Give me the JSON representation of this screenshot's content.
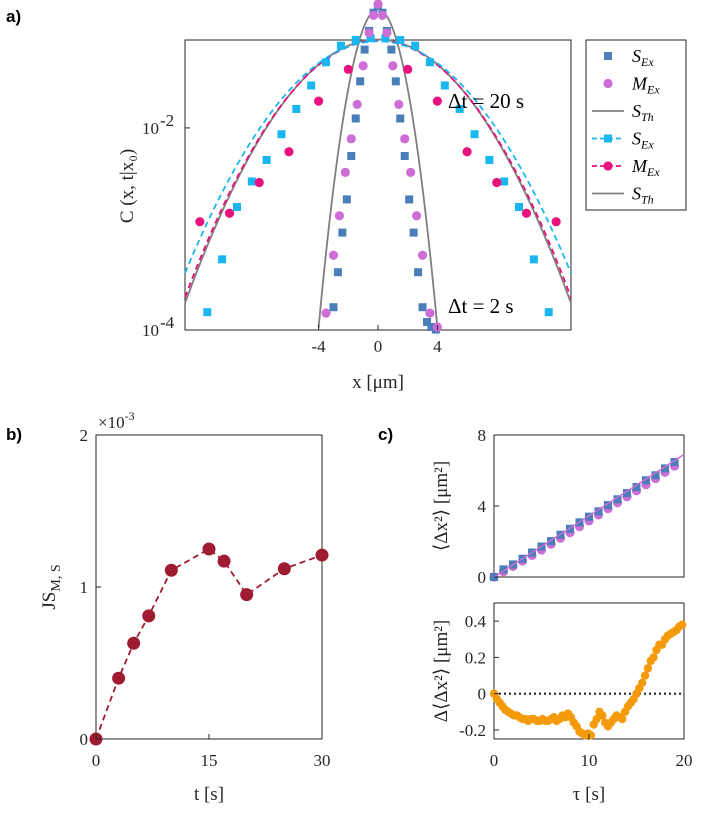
{
  "colors": {
    "S_ex_20": "#1ab6ef",
    "M_ex_20": "#e8117d",
    "S_ex_2": "#4a7ebb",
    "M_ex_2": "#cd6ed6",
    "theory": "#7f7f7f",
    "js": "#9f1b32",
    "msd_S": "#4a7ebb",
    "msd_M": "#cd6ed6",
    "diff": "#f59b0b"
  },
  "chart_data": [
    {
      "panel": "a)",
      "type": "scatter",
      "xlabel": "x [μm]",
      "ylabel": "C (x, t|x₀)",
      "xlim": [
        -13,
        13
      ],
      "ylim_log10": [
        -4,
        -1.13
      ],
      "xticks": [
        -4,
        0,
        4
      ],
      "xtick_labels": [
        "-4",
        "0",
        "4"
      ],
      "yticks_log10": [
        -4,
        -2
      ],
      "ytick_labels": [
        "10",
        "10"
      ],
      "ytick_exponents": [
        "-4",
        "-2"
      ],
      "annotations": [
        "Δt = 20 s",
        "Δt = 2 s"
      ],
      "legend": [
        {
          "label": "S",
          "sub": "Ex",
          "marker": "square",
          "color": "#4a7ebb",
          "line": false
        },
        {
          "label": "M",
          "sub": "Ex",
          "marker": "circle",
          "color": "#cd6ed6",
          "line": false
        },
        {
          "label": "S",
          "sub": "Th",
          "marker": "none",
          "color": "#7f7f7f",
          "line": "solid"
        },
        {
          "label": "S",
          "sub": "Ex",
          "marker": "square",
          "color": "#1ab6ef",
          "line": "dashed"
        },
        {
          "label": "M",
          "sub": "Ex",
          "marker": "circle",
          "color": "#e8117d",
          "line": "dashed"
        },
        {
          "label": "S",
          "sub": "Th",
          "marker": "none",
          "color": "#7f7f7f",
          "line": "solid"
        }
      ],
      "series": [
        {
          "name": "S_Ex dt=20s",
          "marker": "square",
          "color": "#1ab6ef",
          "x": [
            -11.5,
            -10.5,
            -9.5,
            -8.5,
            -7.5,
            -6.5,
            -5.5,
            -4.5,
            -3.5,
            -2.5,
            -1.5,
            -0.5,
            0.5,
            1.5,
            2.5,
            3.5,
            4.5,
            5.5,
            6.5,
            7.5,
            8.5,
            9.5,
            10.5,
            11.5
          ],
          "y": [
            0.00015,
            0.0005,
            0.00165,
            0.00295,
            0.00482,
            0.00866,
            0.0154,
            0.0263,
            0.0446,
            0.0651,
            0.0741,
            0.0772,
            0.0772,
            0.0741,
            0.0651,
            0.0446,
            0.0263,
            0.0154,
            0.00866,
            0.00482,
            0.00295,
            0.00165,
            0.0005,
            0.00015
          ]
        },
        {
          "name": "M_Ex dt=20s",
          "marker": "circle",
          "color": "#e8117d",
          "x": [
            -12,
            -10,
            -8,
            -6,
            -4,
            -2,
            2,
            4,
            6,
            8,
            10,
            12
          ],
          "y": [
            0.00118,
            0.00143,
            0.00288,
            0.00581,
            0.0184,
            0.038,
            0.038,
            0.0184,
            0.00581,
            0.00288,
            0.00143,
            0.00118
          ]
        },
        {
          "name": "S_Ex dt=2s",
          "marker": "square",
          "color": "#4a7ebb",
          "x": [
            -3.0,
            -2.7,
            -2.4,
            -2.1,
            -1.8,
            -1.5,
            -1.2,
            -0.9,
            -0.6,
            -0.3,
            0,
            0.3,
            0.6,
            0.9,
            1.2,
            1.5,
            1.8,
            2.1,
            2.4,
            2.7,
            3.0,
            3.3,
            3.6,
            3.9
          ],
          "y": [
            0.000168,
            0.000373,
            0.00092,
            0.00196,
            0.00527,
            0.0124,
            0.0289,
            0.0596,
            0.0911,
            0.138,
            0.162,
            0.138,
            0.0911,
            0.0596,
            0.0289,
            0.0124,
            0.00527,
            0.00196,
            0.00092,
            0.000373,
            0.000168,
            0.00012,
            0.000107,
            0.000101
          ]
        },
        {
          "name": "M_Ex dt=2s",
          "marker": "circle",
          "color": "#cd6ed6",
          "x": [
            -3.5,
            -3.0,
            -2.6,
            -2.2,
            -1.8,
            -1.4,
            -1.0,
            -0.6,
            -0.3,
            0,
            0.3,
            0.6,
            1.0,
            1.4,
            1.8,
            2.2,
            2.6,
            3.0,
            3.5,
            4.0
          ],
          "y": [
            0.000147,
            0.000549,
            0.00135,
            0.00363,
            0.0078,
            0.0171,
            0.0412,
            0.0872,
            0.13,
            0.168,
            0.13,
            0.0872,
            0.0412,
            0.0171,
            0.0078,
            0.00363,
            0.00135,
            0.000549,
            0.000147,
            0.000107
          ]
        },
        {
          "name": "S_Th dt=20s",
          "line": "solid",
          "color": "#7f7f7f",
          "sigma": 3.75,
          "peak": 0.075
        },
        {
          "name": "M_Ex fit dt=20s",
          "line": "dashed",
          "color": "#e8117d",
          "sigma": 3.8,
          "peak": 0.073
        },
        {
          "name": "S_Ex fit dt=20s",
          "line": "dashed",
          "color": "#1ab6ef",
          "sigma": 4.0,
          "peak": 0.072
        },
        {
          "name": "S_Th dt=2s",
          "line": "solid",
          "color": "#7f7f7f",
          "sigma": 1.05,
          "peak": 0.15
        }
      ]
    },
    {
      "panel": "b)",
      "type": "line",
      "xlabel": "t [s]",
      "ylabel": "JS",
      "ylabel_sub": "M, S",
      "exponent_label": "×10",
      "exponent_power": "-3",
      "xlim": [
        0,
        30
      ],
      "ylim": [
        0,
        2
      ],
      "xticks": [
        0,
        15,
        30
      ],
      "xtick_labels": [
        "0",
        "15",
        "30"
      ],
      "yticks": [
        0,
        1,
        2
      ],
      "ytick_labels": [
        "0",
        "1",
        "2"
      ],
      "x": [
        0,
        3,
        5,
        7,
        10,
        15,
        17,
        20,
        25,
        30
      ],
      "y": [
        0,
        0.4,
        0.63,
        0.81,
        1.11,
        1.25,
        1.17,
        0.95,
        1.12,
        1.21
      ]
    },
    {
      "panel": "c)",
      "type": "line",
      "subplot": "top",
      "xlabel": "",
      "ylabel": "⟨Δx²⟩ [μm²]",
      "xlim": [
        0,
        20
      ],
      "ylim": [
        0,
        8
      ],
      "yticks": [
        0,
        4,
        8
      ],
      "ytick_labels": [
        "0",
        "4",
        "8"
      ],
      "series": [
        {
          "name": "S",
          "marker": "square",
          "color": "#4a7ebb",
          "x": [
            0,
            1,
            2,
            3,
            4,
            5,
            6,
            7,
            8,
            9,
            10,
            11,
            12,
            13,
            14,
            15,
            16,
            17,
            18,
            19
          ],
          "y": [
            0,
            0.43,
            0.71,
            1.03,
            1.38,
            1.72,
            2.02,
            2.38,
            2.72,
            3.08,
            3.4,
            3.7,
            4.05,
            4.38,
            4.73,
            5.07,
            5.45,
            5.73,
            6.12,
            6.48
          ]
        },
        {
          "name": "M",
          "marker": "circle",
          "color": "#cd6ed6",
          "x": [
            0,
            1,
            2,
            3,
            4,
            5,
            6,
            7,
            8,
            9,
            10,
            11,
            12,
            13,
            14,
            15,
            16,
            17,
            18,
            19
          ],
          "y": [
            0,
            0.3,
            0.6,
            0.9,
            1.22,
            1.52,
            1.85,
            2.18,
            2.5,
            2.84,
            3.16,
            3.5,
            3.85,
            4.18,
            4.52,
            4.86,
            5.2,
            5.55,
            5.9,
            6.25
          ]
        }
      ]
    },
    {
      "panel": "c)",
      "type": "scatter",
      "subplot": "bottom",
      "xlabel": "τ [s]",
      "ylabel": "Δ⟨Δx²⟩ [μm²]",
      "xlim": [
        0,
        20
      ],
      "ylim": [
        -0.25,
        0.5
      ],
      "xticks": [
        0,
        10,
        20
      ],
      "xtick_labels": [
        "0",
        "10",
        "20"
      ],
      "yticks": [
        -0.2,
        0,
        0.2,
        0.4
      ],
      "ytick_labels": [
        "-0.2",
        "0",
        "0.2",
        "0.4"
      ],
      "reference_line": 0,
      "x": [
        0,
        0.3,
        0.6,
        0.9,
        1.2,
        1.5,
        1.8,
        2.1,
        2.4,
        2.7,
        3.0,
        3.3,
        3.6,
        3.9,
        4.2,
        4.5,
        4.8,
        5.1,
        5.4,
        5.7,
        6.0,
        6.3,
        6.6,
        6.9,
        7.2,
        7.5,
        7.8,
        8.1,
        8.4,
        8.7,
        9.0,
        9.3,
        9.6,
        9.9,
        10.2,
        10.5,
        10.8,
        11.1,
        11.4,
        11.7,
        12.0,
        12.3,
        12.6,
        12.9,
        13.2,
        13.5,
        13.8,
        14.1,
        14.4,
        14.7,
        15.0,
        15.3,
        15.6,
        15.9,
        16.2,
        16.5,
        16.8,
        17.1,
        17.4,
        17.7,
        18.0,
        18.3,
        18.6,
        18.9,
        19.2,
        19.5,
        19.8
      ],
      "y": [
        0.0,
        -0.03,
        -0.05,
        -0.07,
        -0.09,
        -0.1,
        -0.11,
        -0.12,
        -0.12,
        -0.13,
        -0.14,
        -0.14,
        -0.15,
        -0.14,
        -0.14,
        -0.15,
        -0.15,
        -0.14,
        -0.15,
        -0.15,
        -0.14,
        -0.13,
        -0.15,
        -0.14,
        -0.12,
        -0.13,
        -0.11,
        -0.13,
        -0.16,
        -0.18,
        -0.21,
        -0.22,
        -0.23,
        -0.22,
        -0.23,
        -0.17,
        -0.14,
        -0.1,
        -0.12,
        -0.16,
        -0.18,
        -0.16,
        -0.14,
        -0.12,
        -0.13,
        -0.14,
        -0.1,
        -0.07,
        -0.05,
        -0.03,
        0.0,
        0.03,
        0.06,
        0.1,
        0.14,
        0.18,
        0.2,
        0.24,
        0.27,
        0.27,
        0.3,
        0.32,
        0.33,
        0.34,
        0.35,
        0.37,
        0.38
      ]
    }
  ]
}
